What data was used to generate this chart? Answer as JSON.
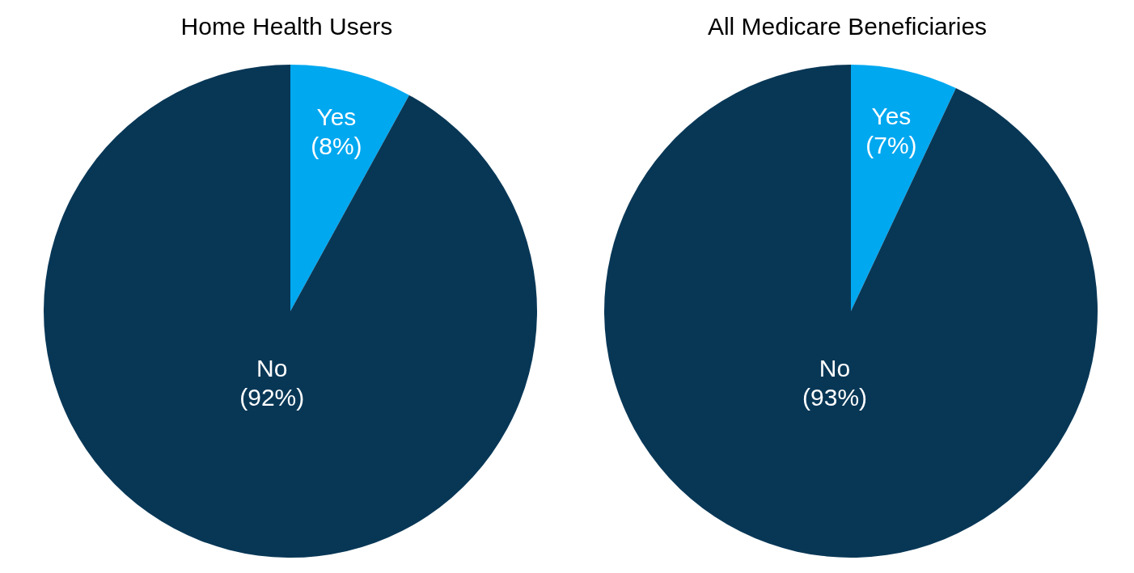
{
  "chart_data": [
    {
      "type": "pie",
      "title": "Home Health Users",
      "categories": [
        "Yes",
        "No"
      ],
      "values": [
        8,
        92
      ],
      "colors": [
        "#00a8f0",
        "#083756"
      ],
      "value_labels": [
        "(8%)",
        "(92%)"
      ]
    },
    {
      "type": "pie",
      "title": "All Medicare Beneficiaries",
      "categories": [
        "Yes",
        "No"
      ],
      "values": [
        7,
        93
      ],
      "colors": [
        "#00a8f0",
        "#083756"
      ],
      "value_labels": [
        "(7%)",
        "(93%)"
      ]
    }
  ]
}
